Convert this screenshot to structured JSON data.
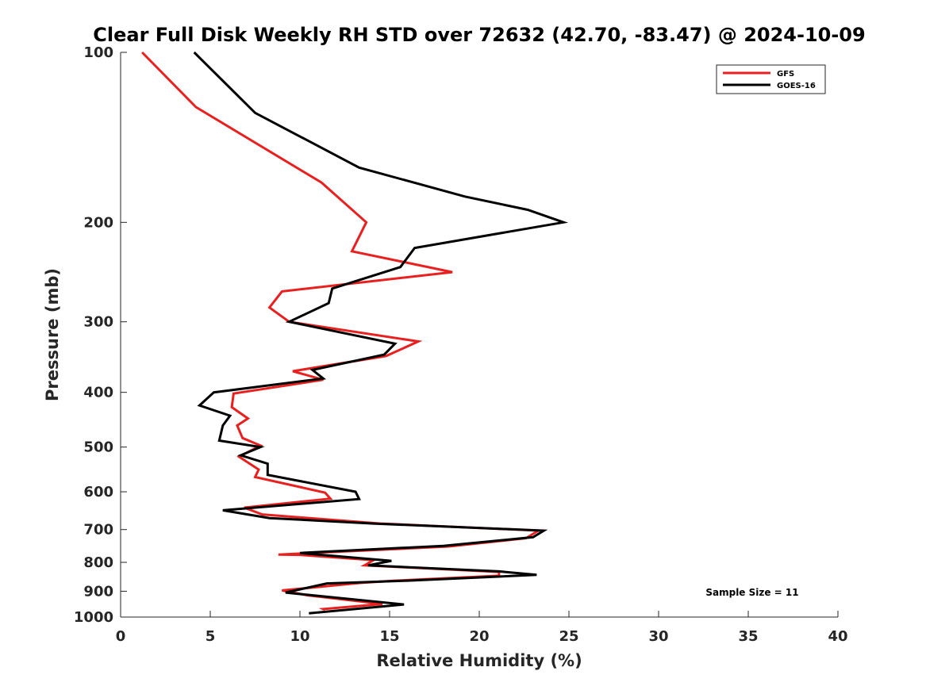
{
  "chart_data": {
    "type": "line",
    "title": "Clear Full Disk Weekly RH STD over 72632 (42.70, -83.47) @ 2024-10-09",
    "xlabel": "Relative Humidity (%)",
    "ylabel": "Pressure (mb)",
    "xlim": [
      0,
      40
    ],
    "ylim": [
      100,
      1000
    ],
    "y_scale": "log",
    "y_reversed": true,
    "x_ticks": [
      0,
      5,
      10,
      15,
      20,
      25,
      30,
      35,
      40
    ],
    "y_ticks": [
      100,
      200,
      300,
      400,
      500,
      600,
      700,
      800,
      900,
      1000
    ],
    "grid": false,
    "legend_position": "top-right",
    "annotation": "Sample Size = 11",
    "series": [
      {
        "name": "GFS",
        "color": "#e8201f",
        "points": [
          [
            1.2,
            100
          ],
          [
            4.2,
            125
          ],
          [
            11.2,
            170
          ],
          [
            13.7,
            200
          ],
          [
            12.9,
            225
          ],
          [
            18.5,
            245
          ],
          [
            9.0,
            265
          ],
          [
            8.3,
            283
          ],
          [
            9.4,
            300
          ],
          [
            16.6,
            325
          ],
          [
            14.8,
            345
          ],
          [
            9.6,
            367
          ],
          [
            11.3,
            380
          ],
          [
            6.3,
            402
          ],
          [
            6.2,
            425
          ],
          [
            7.1,
            445
          ],
          [
            6.5,
            458
          ],
          [
            6.8,
            482
          ],
          [
            7.8,
            497
          ],
          [
            6.6,
            520
          ],
          [
            7.7,
            548
          ],
          [
            7.5,
            565
          ],
          [
            11.4,
            602
          ],
          [
            11.7,
            617
          ],
          [
            6.9,
            640
          ],
          [
            7.9,
            658
          ],
          [
            14.5,
            683
          ],
          [
            23.3,
            703
          ],
          [
            22.6,
            725
          ],
          [
            18.3,
            750
          ],
          [
            8.8,
            775
          ],
          [
            10.0,
            776
          ],
          [
            14.1,
            793
          ],
          [
            13.6,
            810
          ],
          [
            21.1,
            832
          ],
          [
            21.1,
            845
          ],
          [
            15.3,
            862
          ],
          [
            13.4,
            870
          ],
          [
            9.0,
            897
          ],
          [
            10.4,
            915
          ],
          [
            14.6,
            948
          ],
          [
            11.3,
            968
          ],
          [
            11.4,
            971
          ]
        ]
      },
      {
        "name": "GOES-16",
        "color": "#000000",
        "points": [
          [
            4.1,
            100
          ],
          [
            7.5,
            128
          ],
          [
            13.3,
            160
          ],
          [
            19.2,
            180
          ],
          [
            22.7,
            190
          ],
          [
            24.7,
            200
          ],
          [
            16.4,
            222
          ],
          [
            15.6,
            240
          ],
          [
            11.8,
            262
          ],
          [
            11.6,
            278
          ],
          [
            9.4,
            300
          ],
          [
            15.3,
            328
          ],
          [
            14.7,
            343
          ],
          [
            10.7,
            365
          ],
          [
            11.3,
            378
          ],
          [
            5.2,
            400
          ],
          [
            4.4,
            422
          ],
          [
            6.1,
            440
          ],
          [
            5.7,
            458
          ],
          [
            5.5,
            487
          ],
          [
            7.8,
            500
          ],
          [
            6.7,
            517
          ],
          [
            8.2,
            535
          ],
          [
            8.2,
            560
          ],
          [
            13.1,
            600
          ],
          [
            13.3,
            618
          ],
          [
            5.7,
            647
          ],
          [
            8.3,
            668
          ],
          [
            14.1,
            683
          ],
          [
            23.6,
            703
          ],
          [
            23.0,
            722
          ],
          [
            18.0,
            748
          ],
          [
            10.0,
            770
          ],
          [
            15.1,
            795
          ],
          [
            13.8,
            810
          ],
          [
            21.1,
            830
          ],
          [
            23.2,
            842
          ],
          [
            16.0,
            862
          ],
          [
            11.5,
            872
          ],
          [
            9.2,
            905
          ],
          [
            15.8,
            950
          ],
          [
            10.5,
            985
          ]
        ]
      }
    ]
  }
}
